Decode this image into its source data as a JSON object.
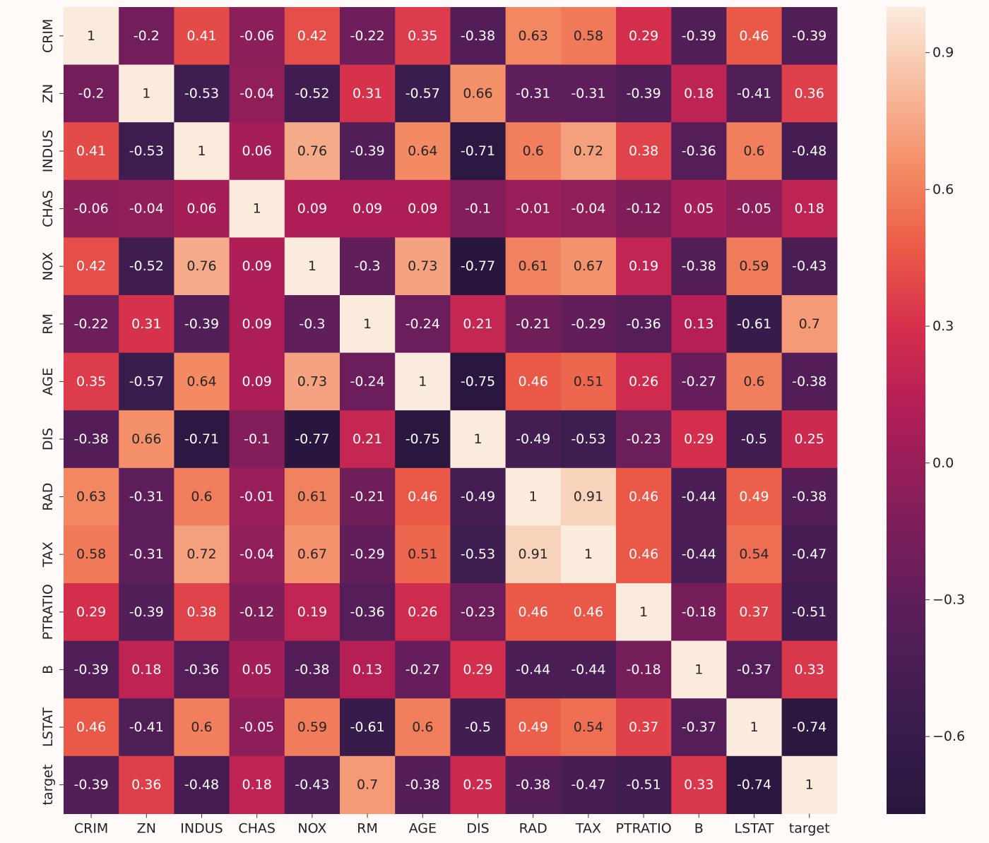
{
  "chart_data": {
    "type": "heatmap",
    "labels": [
      "CRIM",
      "ZN",
      "INDUS",
      "CHAS",
      "NOX",
      "RM",
      "AGE",
      "DIS",
      "RAD",
      "TAX",
      "PTRATIO",
      "B",
      "LSTAT",
      "target"
    ],
    "matrix": [
      [
        1,
        -0.2,
        0.41,
        -0.06,
        0.42,
        -0.22,
        0.35,
        -0.38,
        0.63,
        0.58,
        0.29,
        -0.39,
        0.46,
        -0.39
      ],
      [
        -0.2,
        1,
        -0.53,
        -0.04,
        -0.52,
        0.31,
        -0.57,
        0.66,
        -0.31,
        -0.31,
        -0.39,
        0.18,
        -0.41,
        0.36
      ],
      [
        0.41,
        -0.53,
        1,
        0.06,
        0.76,
        -0.39,
        0.64,
        -0.71,
        0.6,
        0.72,
        0.38,
        -0.36,
        0.6,
        -0.48
      ],
      [
        -0.06,
        -0.04,
        0.06,
        1,
        0.09,
        0.09,
        0.09,
        -0.1,
        -0.01,
        -0.04,
        -0.12,
        0.05,
        -0.05,
        0.18
      ],
      [
        0.42,
        -0.52,
        0.76,
        0.09,
        1,
        -0.3,
        0.73,
        -0.77,
        0.61,
        0.67,
        0.19,
        -0.38,
        0.59,
        -0.43
      ],
      [
        -0.22,
        0.31,
        -0.39,
        0.09,
        -0.3,
        1,
        -0.24,
        0.21,
        -0.21,
        -0.29,
        -0.36,
        0.13,
        -0.61,
        0.7
      ],
      [
        0.35,
        -0.57,
        0.64,
        0.09,
        0.73,
        -0.24,
        1,
        -0.75,
        0.46,
        0.51,
        0.26,
        -0.27,
        0.6,
        -0.38
      ],
      [
        -0.38,
        0.66,
        -0.71,
        -0.1,
        -0.77,
        0.21,
        -0.75,
        1,
        -0.49,
        -0.53,
        -0.23,
        0.29,
        -0.5,
        0.25
      ],
      [
        0.63,
        -0.31,
        0.6,
        -0.01,
        0.61,
        -0.21,
        0.46,
        -0.49,
        1,
        0.91,
        0.46,
        -0.44,
        0.49,
        -0.38
      ],
      [
        0.58,
        -0.31,
        0.72,
        -0.04,
        0.67,
        -0.29,
        0.51,
        -0.53,
        0.91,
        1,
        0.46,
        -0.44,
        0.54,
        -0.47
      ],
      [
        0.29,
        -0.39,
        0.38,
        -0.12,
        0.19,
        -0.36,
        0.26,
        -0.23,
        0.46,
        0.46,
        1,
        -0.18,
        0.37,
        -0.51
      ],
      [
        -0.39,
        0.18,
        -0.36,
        0.05,
        -0.38,
        0.13,
        -0.27,
        0.29,
        -0.44,
        -0.44,
        -0.18,
        1,
        -0.37,
        0.33
      ],
      [
        0.46,
        -0.41,
        0.6,
        -0.05,
        0.59,
        -0.61,
        0.6,
        -0.5,
        0.49,
        0.54,
        0.37,
        -0.37,
        1,
        -0.74
      ],
      [
        -0.39,
        0.36,
        -0.48,
        0.18,
        -0.43,
        0.7,
        -0.38,
        0.25,
        -0.38,
        -0.47,
        -0.51,
        0.33,
        -0.74,
        1
      ]
    ],
    "vmin": -0.77,
    "vmax": 1,
    "colormap": "rocket",
    "colorbar": {
      "ticks": [
        -0.6,
        -0.3,
        0.0,
        0.3,
        0.6,
        0.9
      ],
      "tick_labels": [
        "−0.6",
        "−0.3",
        "0.0",
        "0.3",
        "0.6",
        "0.9"
      ]
    },
    "title": "",
    "xlabel": "",
    "ylabel": ""
  }
}
